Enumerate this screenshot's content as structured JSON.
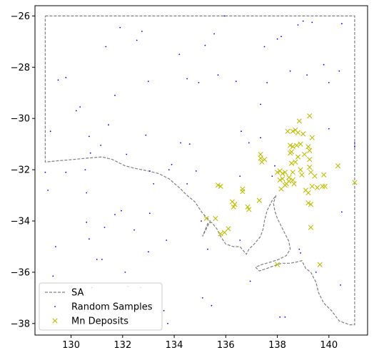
{
  "chart_data": {
    "type": "scatter",
    "xlim": [
      128.6,
      141.5
    ],
    "ylim": [
      -38.45,
      -25.6
    ],
    "x_ticks": [
      130,
      132,
      134,
      136,
      138,
      140
    ],
    "x_tick_labels": [
      "130",
      "132",
      "134",
      "136",
      "138",
      "140"
    ],
    "y_ticks": [
      -26,
      -28,
      -30,
      -32,
      -34,
      -36,
      -38
    ],
    "y_tick_labels": [
      "−26",
      "−28",
      "−30",
      "−32",
      "−34",
      "−36",
      "−38"
    ],
    "grid": false,
    "legend_position": "lower-left",
    "colors": {
      "outline": "#808080",
      "random": "#0000ff",
      "deposits": "#bfbf00"
    },
    "series": [
      {
        "name": "SA",
        "kind": "outline",
        "style": "dashed",
        "points": [
          [
            129.0,
            -26.0
          ],
          [
            141.0,
            -26.0
          ],
          [
            141.0,
            -38.05
          ],
          [
            140.8,
            -38.05
          ],
          [
            140.4,
            -37.9
          ],
          [
            140.1,
            -37.5
          ],
          [
            139.8,
            -37.2
          ],
          [
            139.6,
            -36.8
          ],
          [
            139.5,
            -36.4
          ],
          [
            139.3,
            -36.0
          ],
          [
            139.1,
            -35.85
          ],
          [
            138.95,
            -35.55
          ],
          [
            138.75,
            -35.6
          ],
          [
            138.5,
            -35.65
          ],
          [
            138.2,
            -35.65
          ],
          [
            138.0,
            -35.7
          ],
          [
            137.6,
            -35.85
          ],
          [
            137.3,
            -35.95
          ],
          [
            137.15,
            -35.8
          ],
          [
            137.4,
            -35.7
          ],
          [
            137.75,
            -35.6
          ],
          [
            138.05,
            -35.5
          ],
          [
            138.35,
            -35.35
          ],
          [
            138.5,
            -35.1
          ],
          [
            138.45,
            -34.8
          ],
          [
            138.3,
            -34.5
          ],
          [
            138.15,
            -34.2
          ],
          [
            138.0,
            -33.9
          ],
          [
            137.9,
            -33.6
          ],
          [
            137.85,
            -33.3
          ],
          [
            137.95,
            -33.0
          ],
          [
            137.8,
            -33.2
          ],
          [
            137.6,
            -33.6
          ],
          [
            137.5,
            -34.0
          ],
          [
            137.45,
            -34.3
          ],
          [
            137.35,
            -34.6
          ],
          [
            137.1,
            -34.9
          ],
          [
            136.9,
            -35.1
          ],
          [
            136.8,
            -35.3
          ],
          [
            136.55,
            -35.0
          ],
          [
            136.3,
            -35.0
          ],
          [
            136.0,
            -34.9
          ],
          [
            135.8,
            -34.6
          ],
          [
            135.65,
            -34.3
          ],
          [
            135.45,
            -34.05
          ],
          [
            135.3,
            -34.1
          ],
          [
            135.1,
            -34.6
          ],
          [
            135.4,
            -34.0
          ],
          [
            135.1,
            -33.7
          ],
          [
            134.8,
            -33.25
          ],
          [
            134.5,
            -33.0
          ],
          [
            134.2,
            -32.7
          ],
          [
            133.8,
            -32.35
          ],
          [
            133.4,
            -32.15
          ],
          [
            133.0,
            -32.05
          ],
          [
            132.5,
            -31.95
          ],
          [
            132.1,
            -31.85
          ],
          [
            131.6,
            -31.6
          ],
          [
            131.2,
            -31.5
          ],
          [
            130.6,
            -31.55
          ],
          [
            130.1,
            -31.6
          ],
          [
            129.5,
            -31.65
          ],
          [
            129.0,
            -31.7
          ],
          [
            129.0,
            -26.0
          ]
        ]
      },
      {
        "name": "Random Samples",
        "kind": "points",
        "marker": "dot",
        "points": [
          [
            129.0,
            -32.1
          ],
          [
            129.2,
            -30.5
          ],
          [
            129.1,
            -32.8
          ],
          [
            129.4,
            -35.0
          ],
          [
            129.3,
            -36.15
          ],
          [
            129.5,
            -28.5
          ],
          [
            129.8,
            -28.4
          ],
          [
            129.8,
            -32.1
          ],
          [
            130.2,
            -29.7
          ],
          [
            130.35,
            -29.55
          ],
          [
            130.55,
            -32.0
          ],
          [
            130.7,
            -30.7
          ],
          [
            130.75,
            -31.35
          ],
          [
            130.6,
            -32.9
          ],
          [
            130.6,
            -34.05
          ],
          [
            130.7,
            -34.7
          ],
          [
            130.8,
            -36.6
          ],
          [
            131.0,
            -35.5
          ],
          [
            131.2,
            -35.5
          ],
          [
            131.15,
            -31.05
          ],
          [
            131.3,
            -34.25
          ],
          [
            131.35,
            -27.2
          ],
          [
            131.45,
            -30.25
          ],
          [
            131.7,
            -29.1
          ],
          [
            131.7,
            -33.75
          ],
          [
            131.9,
            -26.45
          ],
          [
            131.95,
            -33.6
          ],
          [
            132.1,
            -36.0
          ],
          [
            132.15,
            -31.4
          ],
          [
            132.2,
            -36.55
          ],
          [
            132.45,
            -34.35
          ],
          [
            132.55,
            -26.95
          ],
          [
            132.7,
            -36.6
          ],
          [
            132.75,
            -26.6
          ],
          [
            132.9,
            -30.65
          ],
          [
            133.0,
            -28.55
          ],
          [
            133.05,
            -32.05
          ],
          [
            133.05,
            -33.7
          ],
          [
            133.0,
            -35.2
          ],
          [
            133.2,
            -32.55
          ],
          [
            133.6,
            -37.5
          ],
          [
            133.7,
            -34.75
          ],
          [
            133.75,
            -38.0
          ],
          [
            133.8,
            -32.0
          ],
          [
            133.9,
            -31.8
          ],
          [
            134.2,
            -27.5
          ],
          [
            134.25,
            -30.95
          ],
          [
            134.5,
            -32.55
          ],
          [
            134.5,
            -28.45
          ],
          [
            134.6,
            -31.0
          ],
          [
            134.95,
            -28.6
          ],
          [
            134.85,
            -32.05
          ],
          [
            135.05,
            -34.0
          ],
          [
            135.2,
            -27.15
          ],
          [
            135.3,
            -35.1
          ],
          [
            135.45,
            -37.3
          ],
          [
            135.55,
            -26.7
          ],
          [
            135.1,
            -37.0
          ],
          [
            135.95,
            -26.0
          ],
          [
            135.7,
            -28.3
          ],
          [
            136.4,
            -28.55
          ],
          [
            136.55,
            -32.25
          ],
          [
            136.55,
            -34.75
          ],
          [
            136.6,
            -30.5
          ],
          [
            136.9,
            -30.95
          ],
          [
            136.95,
            -36.35
          ],
          [
            137.35,
            -30.75
          ],
          [
            137.6,
            -28.6
          ],
          [
            137.5,
            -27.2
          ],
          [
            137.35,
            -29.45
          ],
          [
            137.8,
            -32.25
          ],
          [
            137.9,
            -31.85
          ],
          [
            138.0,
            -26.9
          ],
          [
            138.15,
            -26.8
          ],
          [
            138.5,
            -28.15
          ],
          [
            138.8,
            -26.35
          ],
          [
            139.0,
            -26.2
          ],
          [
            139.35,
            -26.25
          ],
          [
            139.15,
            -28.3
          ],
          [
            139.8,
            -27.9
          ],
          [
            140.0,
            -28.6
          ],
          [
            140.4,
            -28.15
          ],
          [
            140.5,
            -26.3
          ],
          [
            140.0,
            -30.4
          ],
          [
            141.0,
            -30.95
          ],
          [
            141.0,
            -31.1
          ],
          [
            140.5,
            -33.65
          ],
          [
            140.45,
            -36.5
          ],
          [
            138.1,
            -37.75
          ],
          [
            138.3,
            -37.75
          ],
          [
            139.5,
            -36.0
          ],
          [
            138.85,
            -35.1
          ],
          [
            138.9,
            -35.25
          ]
        ]
      },
      {
        "name": "Mn Deposits",
        "kind": "points",
        "marker": "x",
        "points": [
          [
            135.25,
            -33.9
          ],
          [
            135.6,
            -33.9
          ],
          [
            135.7,
            -32.6
          ],
          [
            135.8,
            -32.65
          ],
          [
            135.8,
            -34.5
          ],
          [
            135.95,
            -34.45
          ],
          [
            136.1,
            -34.3
          ],
          [
            136.25,
            -33.25
          ],
          [
            136.3,
            -33.45
          ],
          [
            136.35,
            -33.35
          ],
          [
            136.65,
            -32.75
          ],
          [
            136.65,
            -32.85
          ],
          [
            136.85,
            -33.45
          ],
          [
            136.9,
            -33.55
          ],
          [
            137.3,
            -33.2
          ],
          [
            137.35,
            -31.4
          ],
          [
            137.35,
            -31.55
          ],
          [
            137.4,
            -31.7
          ],
          [
            137.5,
            -31.6
          ],
          [
            138.0,
            -32.1
          ],
          [
            138.1,
            -32.05
          ],
          [
            138.2,
            -32.15
          ],
          [
            138.1,
            -32.4
          ],
          [
            138.2,
            -32.35
          ],
          [
            138.3,
            -32.1
          ],
          [
            138.15,
            -32.75
          ],
          [
            138.35,
            -32.55
          ],
          [
            138.45,
            -32.3
          ],
          [
            138.4,
            -30.5
          ],
          [
            138.5,
            -31.05
          ],
          [
            138.5,
            -31.35
          ],
          [
            138.55,
            -31.3
          ],
          [
            138.6,
            -30.5
          ],
          [
            138.7,
            -30.45
          ],
          [
            138.8,
            -30.55
          ],
          [
            138.6,
            -31.1
          ],
          [
            138.75,
            -31.05
          ],
          [
            138.55,
            -31.75
          ],
          [
            138.6,
            -32.1
          ],
          [
            138.6,
            -32.4
          ],
          [
            138.65,
            -32.55
          ],
          [
            138.7,
            -31.7
          ],
          [
            138.8,
            -31.5
          ],
          [
            138.9,
            -31.0
          ],
          [
            138.85,
            -30.1
          ],
          [
            139.0,
            -30.6
          ],
          [
            138.9,
            -32.0
          ],
          [
            138.95,
            -32.2
          ],
          [
            139.05,
            -31.4
          ],
          [
            139.1,
            -32.8
          ],
          [
            139.2,
            -32.9
          ],
          [
            139.2,
            -31.1
          ],
          [
            139.25,
            -31.25
          ],
          [
            139.25,
            -31.6
          ],
          [
            139.25,
            -31.9
          ],
          [
            139.3,
            -32.1
          ],
          [
            139.2,
            -33.3
          ],
          [
            139.3,
            -33.35
          ],
          [
            139.3,
            -34.25
          ],
          [
            139.25,
            -29.9
          ],
          [
            139.35,
            -30.75
          ],
          [
            139.45,
            -32.25
          ],
          [
            139.35,
            -32.65
          ],
          [
            139.55,
            -32.7
          ],
          [
            139.75,
            -32.65
          ],
          [
            139.85,
            -32.65
          ],
          [
            139.65,
            -35.7
          ],
          [
            138.0,
            -35.7
          ],
          [
            140.35,
            -31.85
          ],
          [
            141.0,
            -32.5
          ],
          [
            139.8,
            -32.2
          ],
          [
            138.3,
            -32.6
          ],
          [
            138.45,
            -32.45
          ]
        ]
      }
    ]
  }
}
